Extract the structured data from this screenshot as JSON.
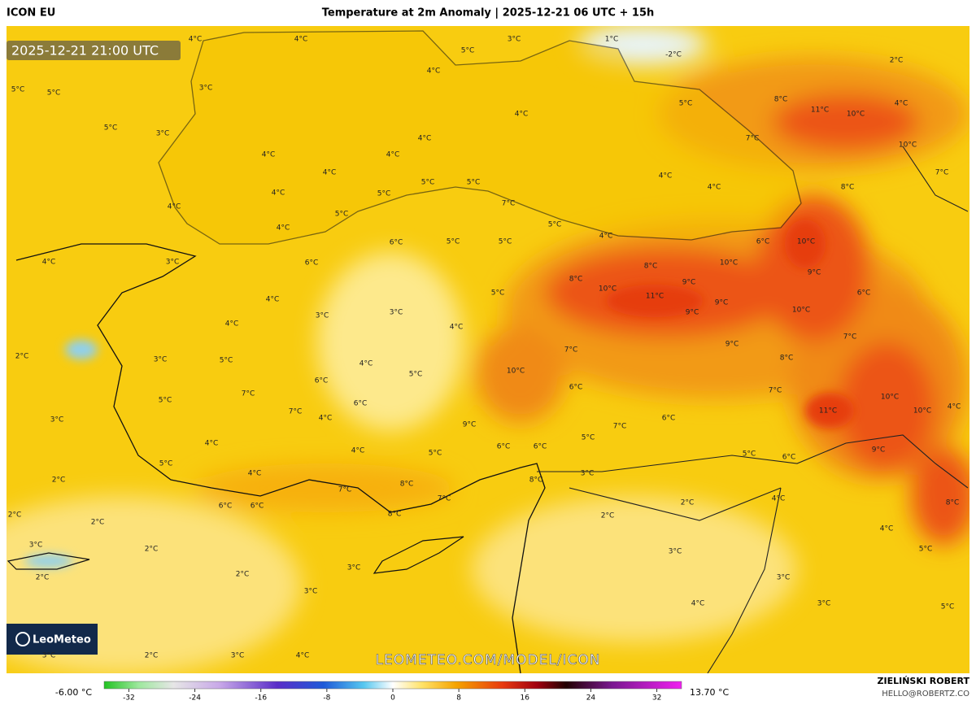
{
  "header": {
    "model": "ICON EU",
    "title": "Temperature at 2m Anomaly | 2025-12-21 06 UTC + 15h"
  },
  "timestamp": "2025-12-21 21:00 UTC",
  "watermark": "LEOMETEO.COM/MODEL/ICON",
  "logo": "LeoMeteo",
  "colorbar": {
    "min_label": "-6.00 °C",
    "max_label": "13.70 °C",
    "lim": [
      -35,
      35
    ],
    "ticks": [
      -32,
      -24,
      -16,
      -8,
      0,
      8,
      16,
      24,
      32
    ]
  },
  "credits": {
    "author": "ZIELIŃSKI ROBERT",
    "email": "HELLO@ROBERTZ.CO"
  },
  "map_labels": [
    "4°C",
    "4°C",
    "3°C",
    "5°C",
    "1°C",
    "-2°C",
    "2°C",
    "4°C",
    "5°C",
    "5°C",
    "3°C",
    "8°C",
    "11°C",
    "10°C",
    "4°C",
    "5°C",
    "4°C",
    "5°C",
    "3°C",
    "4°C",
    "7°C",
    "10°C",
    "4°C",
    "4°C",
    "4°C",
    "4°C",
    "4°C",
    "8°C",
    "7°C",
    "5°C",
    "5°C",
    "4°C",
    "5°C",
    "7°C",
    "4°C",
    "5°C",
    "5°C",
    "4°C",
    "4°C",
    "10°C",
    "6°C",
    "6°C",
    "5°C",
    "5°C",
    "4°C",
    "3°C",
    "6°C",
    "8°C",
    "10°C",
    "9°C",
    "8°C",
    "9°C",
    "10°C",
    "11°C",
    "9°C",
    "6°C",
    "5°C",
    "4°C",
    "3°C",
    "3°C",
    "9°C",
    "10°C",
    "4°C",
    "4°C",
    "7°C",
    "9°C",
    "7°C",
    "2°C",
    "3°C",
    "5°C",
    "4°C",
    "8°C",
    "10°C",
    "5°C",
    "6°C",
    "6°C",
    "7°C",
    "7°C",
    "6°C",
    "10°C",
    "4°C",
    "5°C",
    "7°C",
    "11°C",
    "10°C",
    "3°C",
    "4°C",
    "9°C",
    "7°C",
    "6°C",
    "4°C",
    "5°C",
    "4°C",
    "5°C",
    "6°C",
    "6°C",
    "5°C",
    "6°C",
    "9°C",
    "5°C",
    "4°C",
    "3°C",
    "2°C",
    "7°C",
    "8°C",
    "8°C",
    "2°C",
    "2°C",
    "7°C",
    "6°C",
    "6°C",
    "8°C",
    "4°C",
    "2°C",
    "8°C",
    "2°C",
    "3°C",
    "2°C",
    "3°C",
    "4°C",
    "5°C",
    "3°C",
    "2°C",
    "3°C",
    "3°C",
    "3°C",
    "5°C",
    "4°C",
    "2°C",
    "2°C",
    "3°C",
    "3°C",
    "4°C"
  ]
}
